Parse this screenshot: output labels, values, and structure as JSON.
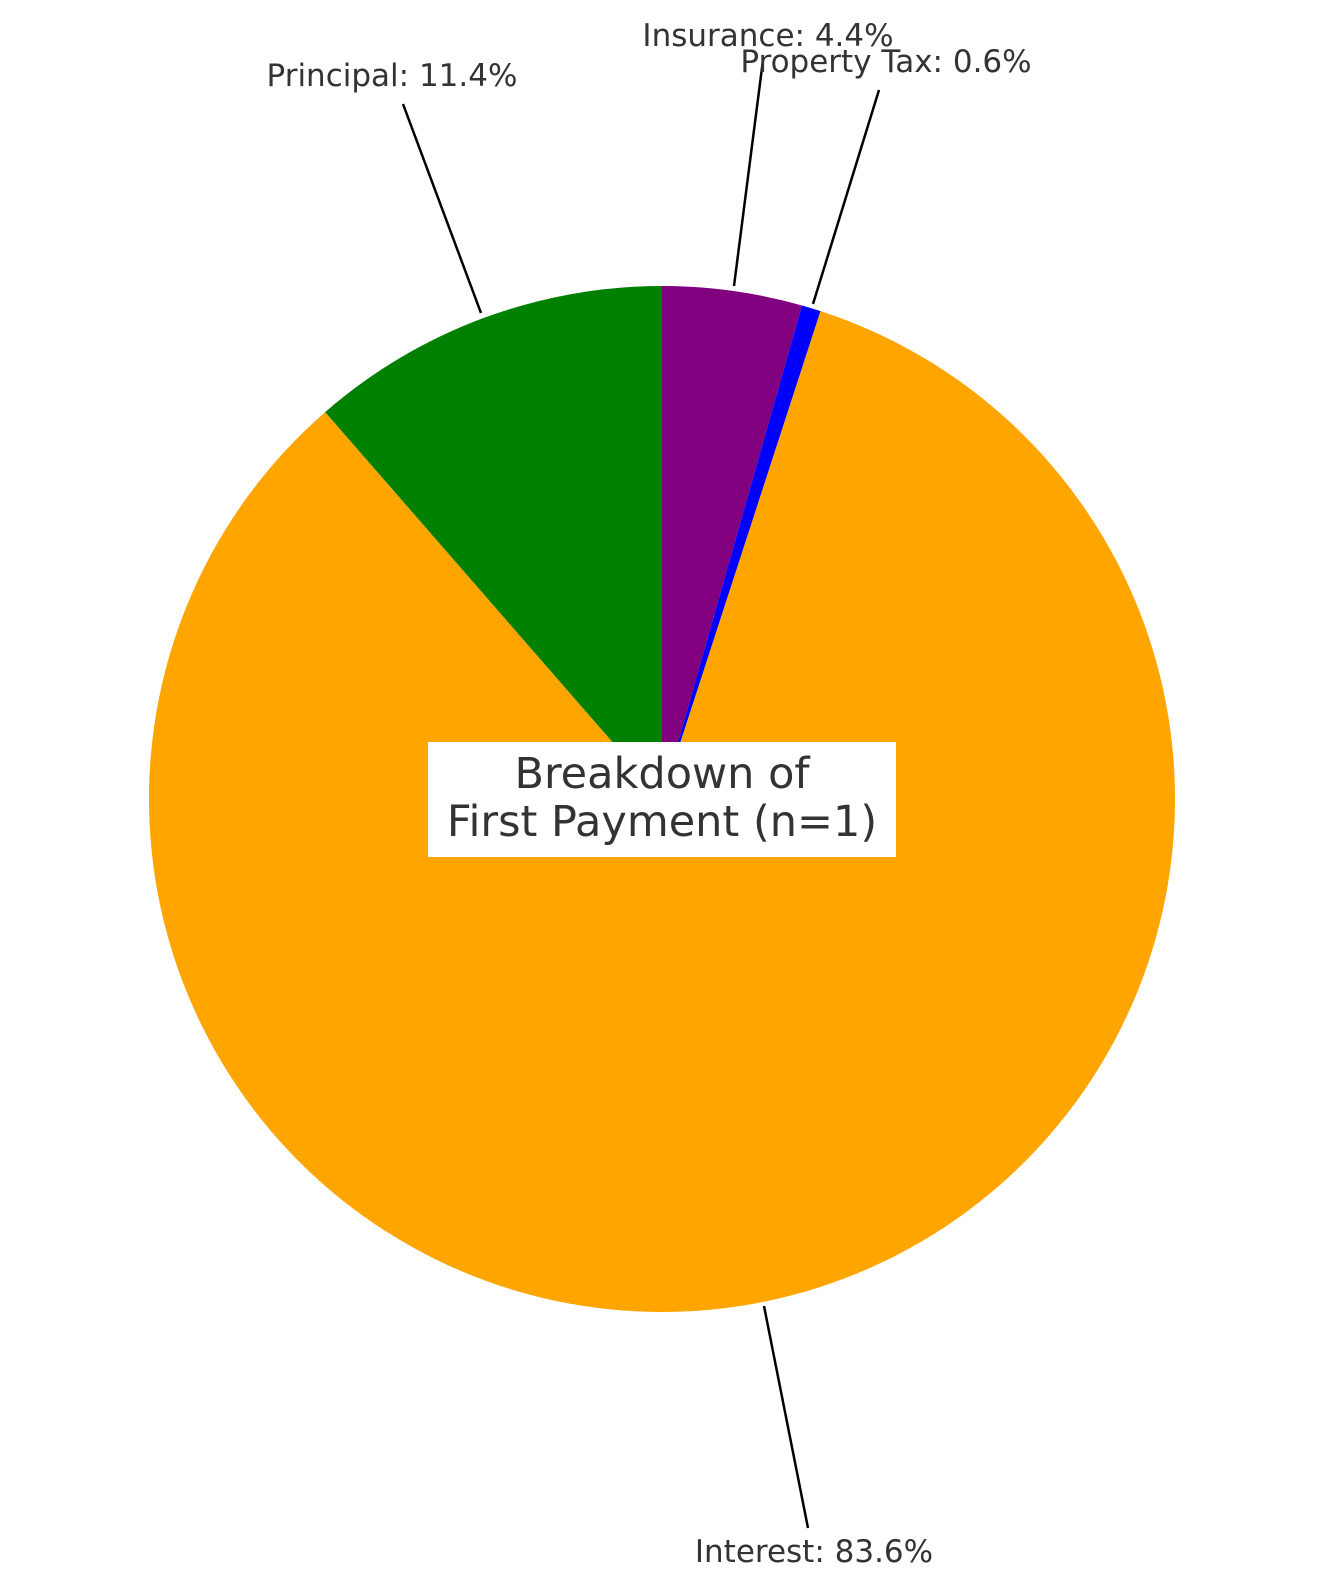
{
  "chart_data": {
    "type": "pie",
    "title_lines": [
      "Breakdown of",
      "First Payment (n=1)"
    ],
    "slices": [
      {
        "label": "Insurance",
        "value": 4.4,
        "display": "Insurance: 4.4%",
        "color": "#800080"
      },
      {
        "label": "Property Tax",
        "value": 0.6,
        "display": "Property Tax: 0.6%",
        "color": "#0000ff"
      },
      {
        "label": "Interest",
        "value": 83.6,
        "display": "Interest: 83.6%",
        "color": "#ffa500"
      },
      {
        "label": "Principal",
        "value": 11.4,
        "display": "Principal: 11.4%",
        "color": "#008000"
      }
    ],
    "start": "12 o'clock",
    "direction": "clockwise",
    "legend": "none",
    "grid": false
  }
}
